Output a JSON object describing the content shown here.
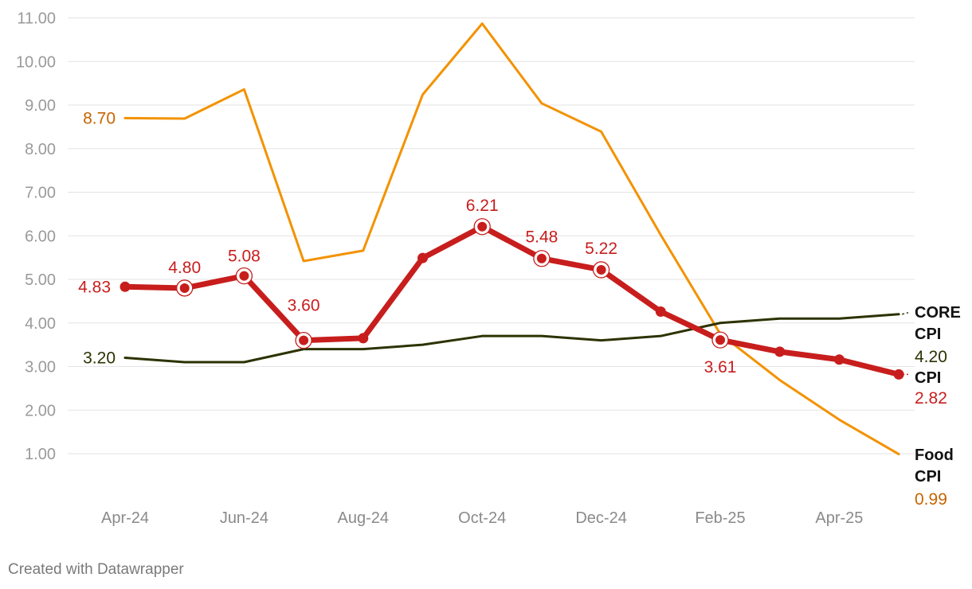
{
  "chart_data": {
    "type": "line",
    "title": "",
    "xlabel": "",
    "ylabel": "",
    "ylim": [
      0,
      11
    ],
    "y_ticks": [
      "1.00",
      "2.00",
      "3.00",
      "4.00",
      "5.00",
      "6.00",
      "7.00",
      "8.00",
      "9.00",
      "10.00",
      "11.00"
    ],
    "categories": [
      "Apr-24",
      "May-24",
      "Jun-24",
      "Jul-24",
      "Aug-24",
      "Sep-24",
      "Oct-24",
      "Nov-24",
      "Dec-24",
      "Jan-25",
      "Feb-25",
      "Mar-25",
      "Apr-25",
      "May-25"
    ],
    "x_tick_labels": [
      "Apr-24",
      "Jun-24",
      "Aug-24",
      "Oct-24",
      "Dec-24",
      "Feb-25",
      "Apr-25"
    ],
    "series": [
      {
        "name": "Food CPI",
        "label_lines": [
          "Food",
          "CPI"
        ],
        "end_value": "0.99",
        "color": "#f39200",
        "label_value_color": "#c86400",
        "values": [
          8.7,
          8.69,
          9.36,
          5.42,
          5.66,
          9.24,
          10.87,
          9.04,
          8.39,
          6.02,
          3.75,
          2.69,
          1.78,
          0.99
        ],
        "point_labels": [
          {
            "index": 0,
            "text": "8.70"
          }
        ]
      },
      {
        "name": "CORE CPI",
        "label_lines": [
          "CORE",
          "CPI"
        ],
        "end_value": "4.20",
        "color": "#2d3200",
        "label_value_color": "#2d3200",
        "values": [
          3.2,
          3.1,
          3.1,
          3.4,
          3.4,
          3.5,
          3.7,
          3.7,
          3.6,
          3.7,
          4.0,
          4.1,
          4.1,
          4.2
        ],
        "point_labels": [
          {
            "index": 0,
            "text": "3.20"
          }
        ]
      },
      {
        "name": "CPI",
        "label_lines": [
          "CPI"
        ],
        "end_value": "2.82",
        "color": "#c71e1d",
        "label_value_color": "#c71e1d",
        "values": [
          4.83,
          4.8,
          5.08,
          3.6,
          3.65,
          5.49,
          6.21,
          5.48,
          5.22,
          4.26,
          3.61,
          3.34,
          3.16,
          2.82
        ],
        "point_labels": [
          {
            "index": 0,
            "text": "4.83"
          },
          {
            "index": 1,
            "text": "4.80"
          },
          {
            "index": 2,
            "text": "5.08"
          },
          {
            "index": 3,
            "text": "3.60"
          },
          {
            "index": 6,
            "text": "6.21"
          },
          {
            "index": 7,
            "text": "5.48"
          },
          {
            "index": 8,
            "text": "5.22"
          },
          {
            "index": 10,
            "text": "3.61"
          }
        ],
        "highlighted_points": [
          1,
          2,
          3,
          6,
          7,
          8,
          10
        ]
      }
    ]
  },
  "footer": {
    "credit": "Created with Datawrapper"
  }
}
